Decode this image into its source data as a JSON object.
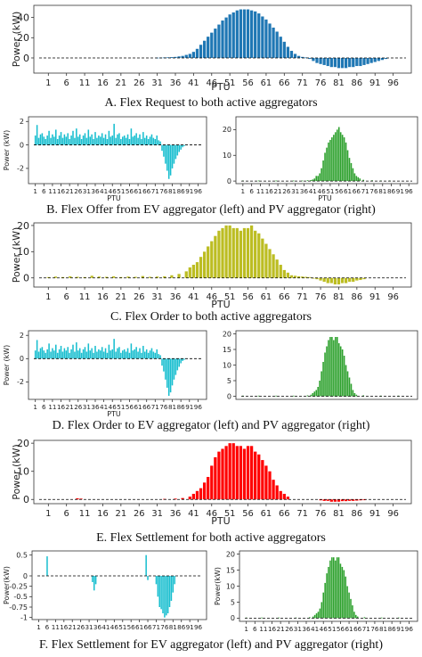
{
  "captions": {
    "a": "A. Flex Request to both active aggregators",
    "b": "B. Flex Offer from EV aggregator (left) and PV aggregator (right)",
    "c": "C. Flex Order to both active aggregators",
    "d": "D. Flex Order to EV aggregator (left) and PV aggregator (right)",
    "e": "E. Flex Settlement for both active aggregators",
    "f": "F. Flex Settlement for EV aggregator (left) and PV aggregator (right)"
  },
  "chart_data": [
    {
      "id": "A",
      "type": "bar",
      "color": "#1f77b4",
      "ylabel": "Power (kW)",
      "xlabel": "PTU",
      "ylim": [
        -15,
        52
      ],
      "yticks": [
        0,
        20,
        40
      ],
      "xticks": [
        "1",
        "6",
        "11",
        "16",
        "21",
        "26",
        "31",
        "36",
        "41",
        "46",
        "51",
        "56",
        "61",
        "66",
        "71",
        "76",
        "81",
        "86",
        "91",
        "96"
      ],
      "x": [
        31,
        32,
        33,
        34,
        35,
        36,
        37,
        38,
        39,
        40,
        41,
        42,
        43,
        44,
        45,
        46,
        47,
        48,
        49,
        50,
        51,
        52,
        53,
        54,
        55,
        56,
        57,
        58,
        59,
        60,
        61,
        62,
        63,
        64,
        65,
        66,
        67,
        68,
        69,
        70,
        71,
        72,
        73,
        74,
        75,
        76,
        77,
        78,
        79,
        80,
        81,
        82,
        83,
        84,
        85,
        86,
        87,
        88,
        89,
        90,
        91,
        92,
        93,
        94
      ],
      "y": [
        0.3,
        0.4,
        0.5,
        0.6,
        0.8,
        1,
        1.5,
        2,
        3,
        4,
        6,
        9,
        13,
        17,
        21,
        25,
        29,
        33,
        37,
        40,
        43,
        45,
        47,
        48,
        48,
        48,
        47,
        46,
        44,
        41,
        38,
        34,
        30,
        26,
        21,
        16,
        11,
        7,
        4,
        2,
        1,
        0.5,
        -1,
        -3,
        -5,
        -6,
        -7,
        -8,
        -9,
        -9,
        -10,
        -10,
        -10,
        -9,
        -9,
        -8,
        -8,
        -7,
        -6,
        -5,
        -4,
        -3,
        -2,
        -1
      ]
    },
    {
      "id": "B-left",
      "type": "bar",
      "color": "#17becf",
      "ylabel": "Power (kW)",
      "xlabel": "PTU",
      "ylim": [
        -3.3,
        2.4
      ],
      "yticks": [
        -2,
        0,
        2
      ],
      "xticks": [
        "1",
        "6",
        "11",
        "16",
        "21",
        "26",
        "31",
        "36",
        "41",
        "46",
        "51",
        "56",
        "61",
        "66",
        "71",
        "76",
        "81",
        "86",
        "91",
        "96"
      ],
      "x": [
        1,
        2,
        3,
        4,
        5,
        6,
        7,
        8,
        9,
        10,
        11,
        12,
        13,
        14,
        15,
        16,
        17,
        18,
        19,
        20,
        21,
        22,
        23,
        24,
        25,
        26,
        27,
        28,
        29,
        30,
        31,
        32,
        33,
        34,
        35,
        36,
        37,
        38,
        39,
        40,
        41,
        42,
        43,
        44,
        45,
        46,
        47,
        48,
        49,
        50,
        51,
        52,
        53,
        54,
        55,
        56,
        57,
        58,
        59,
        60,
        61,
        62,
        63,
        64,
        65,
        66,
        67,
        68,
        69,
        70,
        71,
        72,
        73,
        74,
        75,
        76,
        77,
        78,
        79,
        80,
        81,
        82,
        83,
        84,
        85,
        86,
        87,
        88
      ],
      "y": [
        0.8,
        1.7,
        0.6,
        0.9,
        1.0,
        0.7,
        0.5,
        0.8,
        1.2,
        0.6,
        0.9,
        0.7,
        1.3,
        0.5,
        0.8,
        1.1,
        0.6,
        0.9,
        0.7,
        1.0,
        0.5,
        0.8,
        1.2,
        0.6,
        1.4,
        0.7,
        0.9,
        0.5,
        0.8,
        1.0,
        0.6,
        1.3,
        0.7,
        0.9,
        0.5,
        1.1,
        0.6,
        0.8,
        0.7,
        1.0,
        0.6,
        0.9,
        0.5,
        1.2,
        0.7,
        0.8,
        1.8,
        0.6,
        0.9,
        1.0,
        0.5,
        0.7,
        0.8,
        0.6,
        0.9,
        0.5,
        1.4,
        0.7,
        0.8,
        1.0,
        0.6,
        0.9,
        0.5,
        1.1,
        0.6,
        0.8,
        0.5,
        0.7,
        0.9,
        0.6,
        0.5,
        0.8,
        0.4,
        0.3,
        -0.5,
        -1.0,
        -1.6,
        -2.2,
        -2.9,
        -2.6,
        -2.0,
        -1.6,
        -1.2,
        -0.9,
        -0.6,
        -0.4,
        -0.2,
        -0.1
      ]
    },
    {
      "id": "B-right",
      "type": "bar",
      "color": "#2ca02c",
      "ylabel": "",
      "xlabel": "PTU",
      "ylim": [
        -1,
        25
      ],
      "yticks": [
        0,
        10,
        20
      ],
      "xticks": [
        "1",
        "6",
        "11",
        "16",
        "21",
        "26",
        "31",
        "36",
        "41",
        "46",
        "51",
        "56",
        "61",
        "66",
        "71",
        "76",
        "81",
        "86",
        "91",
        "96"
      ],
      "x": [
        1,
        10,
        20,
        30,
        35,
        38,
        40,
        41,
        42,
        43,
        44,
        45,
        46,
        47,
        48,
        49,
        50,
        51,
        52,
        53,
        54,
        55,
        56,
        57,
        58,
        59,
        60,
        61,
        62,
        63,
        64,
        65,
        66,
        67,
        68,
        70,
        75,
        80,
        85
      ],
      "y": [
        0.2,
        0.2,
        0.2,
        0.2,
        0.2,
        0.3,
        0.4,
        0.6,
        1,
        2,
        2,
        3,
        5,
        8,
        11,
        13,
        15,
        16,
        17,
        18,
        19,
        20,
        21,
        19,
        18,
        17,
        15,
        12,
        9,
        7,
        5,
        3,
        2,
        1.5,
        1,
        0.5,
        0.3,
        0.2,
        0.2
      ]
    },
    {
      "id": "C",
      "type": "bar",
      "color": "#bcbd22",
      "ylabel": "Power (kW)",
      "xlabel": "PTU",
      "ylim": [
        -3.5,
        21
      ],
      "yticks": [
        0,
        10,
        20
      ],
      "xticks": [
        "1",
        "6",
        "11",
        "16",
        "21",
        "26",
        "31",
        "36",
        "41",
        "46",
        "51",
        "56",
        "61",
        "66",
        "71",
        "76",
        "81",
        "86",
        "91",
        "96"
      ],
      "x": [
        1,
        3,
        5,
        7,
        9,
        11,
        13,
        15,
        17,
        19,
        21,
        23,
        25,
        27,
        29,
        31,
        33,
        35,
        37,
        39,
        40,
        41,
        42,
        43,
        44,
        45,
        46,
        47,
        48,
        49,
        50,
        51,
        52,
        53,
        54,
        55,
        56,
        57,
        58,
        59,
        60,
        61,
        62,
        63,
        64,
        65,
        66,
        67,
        68,
        69,
        70,
        71,
        72,
        73,
        74,
        75,
        76,
        77,
        78,
        79,
        80,
        81,
        82,
        83,
        84,
        85,
        86,
        87,
        88
      ],
      "y": [
        0.3,
        0.5,
        0.3,
        0.6,
        0.4,
        0.3,
        0.8,
        0.5,
        0.4,
        0.6,
        0.3,
        0.5,
        0.4,
        0.7,
        0.4,
        0.5,
        0.6,
        1.0,
        1.5,
        2.5,
        4,
        5,
        6,
        8,
        10,
        12,
        14,
        16,
        18,
        19,
        20,
        20,
        19,
        19,
        18,
        19,
        19,
        20,
        18,
        17,
        15,
        13,
        11,
        9,
        7,
        5,
        3,
        2,
        1,
        0.8,
        0.6,
        0.5,
        0.4,
        0.3,
        -0.2,
        -0.5,
        -1,
        -1.5,
        -2,
        -2,
        -2.5,
        -2.5,
        -2,
        -2,
        -1.5,
        -1.5,
        -1,
        -0.8,
        -0.5
      ]
    },
    {
      "id": "D-left",
      "type": "bar",
      "color": "#17becf",
      "ylabel": "Power (kW)",
      "xlabel": "PTU",
      "ylim": [
        -3.5,
        2.4
      ],
      "yticks": [
        -2,
        0,
        2
      ],
      "xticks": [
        "1",
        "6",
        "11",
        "16",
        "21",
        "26",
        "31",
        "36",
        "41",
        "46",
        "51",
        "56",
        "61",
        "66",
        "71",
        "76",
        "81",
        "86",
        "91",
        "96"
      ],
      "x": [
        1,
        2,
        3,
        4,
        5,
        6,
        7,
        8,
        9,
        10,
        11,
        12,
        13,
        14,
        15,
        16,
        17,
        18,
        19,
        20,
        21,
        22,
        23,
        24,
        25,
        26,
        27,
        28,
        29,
        30,
        31,
        32,
        33,
        34,
        35,
        36,
        37,
        38,
        39,
        40,
        41,
        42,
        43,
        44,
        45,
        46,
        47,
        48,
        49,
        50,
        51,
        52,
        53,
        54,
        55,
        56,
        57,
        58,
        59,
        60,
        61,
        62,
        63,
        64,
        65,
        66,
        67,
        68,
        69,
        70,
        71,
        72,
        73,
        74,
        75,
        76,
        77,
        78,
        79,
        80,
        81,
        82,
        83,
        84,
        85,
        86,
        87,
        88
      ],
      "y": [
        0.7,
        1.6,
        0.6,
        0.9,
        1.0,
        0.7,
        0.5,
        0.8,
        1.3,
        0.6,
        0.9,
        0.7,
        1.2,
        0.5,
        0.8,
        1.1,
        0.6,
        0.9,
        0.7,
        1.0,
        0.5,
        0.8,
        1.2,
        0.6,
        1.4,
        0.7,
        0.9,
        0.5,
        0.8,
        1.0,
        0.6,
        1.3,
        0.7,
        0.9,
        0.5,
        1.1,
        0.6,
        0.8,
        0.7,
        1.0,
        0.6,
        0.9,
        0.5,
        1.2,
        0.7,
        0.8,
        1.7,
        0.6,
        0.9,
        1.0,
        0.5,
        0.7,
        0.8,
        0.6,
        0.9,
        0.5,
        1.3,
        0.7,
        0.8,
        1.0,
        0.6,
        0.9,
        0.5,
        1.1,
        0.6,
        0.8,
        0.5,
        0.7,
        0.9,
        0.6,
        0.5,
        0.8,
        0.4,
        0.3,
        -0.6,
        -1.1,
        -1.8,
        -2.5,
        -3.2,
        -2.9,
        -2.3,
        -1.8,
        -1.4,
        -1.0,
        -0.7,
        -0.4,
        -0.2,
        -0.1
      ]
    },
    {
      "id": "D-right",
      "type": "bar",
      "color": "#2ca02c",
      "ylabel": "",
      "xlabel": "",
      "ylim": [
        -1,
        21
      ],
      "yticks": [
        0,
        5,
        10,
        15,
        20
      ],
      "xticks": [],
      "x": [
        1,
        10,
        20,
        30,
        38,
        40,
        41,
        42,
        43,
        44,
        45,
        46,
        47,
        48,
        49,
        50,
        51,
        52,
        53,
        54,
        55,
        56,
        57,
        58,
        59,
        60,
        61,
        62,
        63,
        64,
        65,
        66,
        70,
        80,
        90
      ],
      "y": [
        0.2,
        0.2,
        0.2,
        0.2,
        0.3,
        0.5,
        1,
        1.5,
        2,
        3,
        5,
        8,
        11,
        14,
        16,
        18,
        19,
        19,
        18,
        19,
        19,
        17,
        16,
        15,
        13,
        10,
        8,
        6,
        4,
        2,
        1,
        0.5,
        0.3,
        0.2,
        0.2
      ]
    },
    {
      "id": "E",
      "type": "bar",
      "color": "#ff0000",
      "ylabel": "Power (kW)",
      "xlabel": "PTU",
      "ylim": [
        -1.5,
        21
      ],
      "yticks": [
        0,
        10,
        20
      ],
      "xticks": [
        "1",
        "6",
        "11",
        "16",
        "21",
        "26",
        "31",
        "36",
        "41",
        "46",
        "51",
        "56",
        "61",
        "66",
        "71",
        "76",
        "81",
        "86",
        "91",
        "96"
      ],
      "x": [
        9,
        10,
        33,
        36,
        38,
        40,
        41,
        42,
        43,
        44,
        45,
        46,
        47,
        48,
        49,
        50,
        51,
        52,
        53,
        54,
        55,
        56,
        57,
        58,
        59,
        60,
        61,
        62,
        63,
        64,
        65,
        66,
        67,
        76,
        77,
        78,
        79,
        80,
        81,
        82,
        83,
        84,
        85,
        86,
        87,
        88
      ],
      "y": [
        0.4,
        0.3,
        0.2,
        0.3,
        0.5,
        1,
        2,
        3,
        4,
        6,
        8,
        12,
        15,
        17,
        18,
        19,
        20,
        20,
        19,
        19,
        18,
        19,
        19,
        17,
        16,
        14,
        12,
        10,
        7,
        5,
        3,
        2,
        1,
        -0.3,
        -0.5,
        -0.5,
        -0.8,
        -0.8,
        -0.8,
        -0.6,
        -0.6,
        -0.5,
        -0.5,
        -0.4,
        -0.3,
        -0.2
      ]
    },
    {
      "id": "F-left",
      "type": "bar",
      "color": "#17becf",
      "ylabel": "Power(kW)",
      "xlabel": "",
      "ylim": [
        -1.05,
        0.6
      ],
      "yticks": [
        0.5,
        0.0,
        -0.25,
        -0.5,
        -0.75,
        -1.0
      ],
      "xticks": [
        "1",
        "6",
        "11",
        "16",
        "21",
        "26",
        "31",
        "36",
        "41",
        "46",
        "51",
        "56",
        "61",
        "66",
        "71",
        "76",
        "81",
        "86",
        "91",
        "96"
      ],
      "x": [
        6,
        33,
        34,
        35,
        65,
        66,
        71,
        72,
        73,
        74,
        75,
        76,
        77,
        78,
        79,
        80,
        81,
        82
      ],
      "y": [
        0.47,
        -0.15,
        -0.35,
        -0.2,
        0.5,
        -0.1,
        -0.2,
        -0.5,
        -0.75,
        -0.8,
        -0.9,
        -1.0,
        -0.95,
        -0.9,
        -0.75,
        -0.6,
        -0.4,
        -0.2
      ]
    },
    {
      "id": "F-right",
      "type": "bar",
      "color": "#2ca02c",
      "ylabel": "Power(kW)",
      "xlabel": "",
      "ylim": [
        -1,
        21
      ],
      "yticks": [
        0,
        5,
        10,
        15,
        20
      ],
      "xticks": [
        "1",
        "6",
        "11",
        "16",
        "21",
        "26",
        "31",
        "36",
        "41",
        "46",
        "51",
        "56",
        "61",
        "66",
        "71",
        "76",
        "81",
        "86",
        "91",
        "96"
      ],
      "x": [
        1,
        10,
        20,
        30,
        38,
        40,
        41,
        42,
        43,
        44,
        45,
        46,
        47,
        48,
        49,
        50,
        51,
        52,
        53,
        54,
        55,
        56,
        57,
        58,
        59,
        60,
        61,
        62,
        63,
        64,
        65,
        66,
        70,
        80,
        90
      ],
      "y": [
        0.2,
        0.2,
        0.2,
        0.2,
        0.3,
        0.5,
        1,
        1.5,
        2,
        3,
        5,
        8,
        11,
        14,
        16,
        18,
        19,
        19,
        18,
        19,
        19,
        17,
        16,
        15,
        13,
        10,
        8,
        6,
        4,
        2,
        1,
        0.5,
        0.3,
        0.2,
        0.2
      ]
    }
  ]
}
